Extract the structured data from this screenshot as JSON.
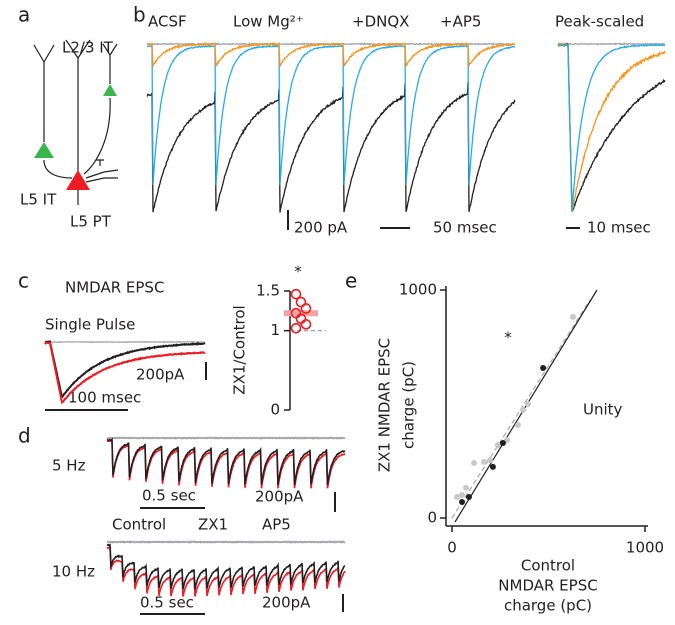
{
  "panel_labels": [
    "a",
    "b",
    "c",
    "d",
    "e"
  ],
  "panel_a": {
    "labels": [
      "L2/3 IT",
      "L5 IT",
      "L5 PT"
    ]
  },
  "panel_b": {
    "legend": [
      {
        "name": "ACSF",
        "color": "#29abe2"
      },
      {
        "name": "Low Mg²⁺",
        "color": "#231f20"
      },
      {
        "name": "+DNQX",
        "color": "#f7941d"
      },
      {
        "name": "+AP5",
        "color": "#a7a9ac"
      }
    ],
    "inset_title": "Peak-scaled",
    "scale_bars": [
      "200 pA",
      "50 msec",
      "10 msec"
    ]
  },
  "panel_c": {
    "title": "NMDAR EPSC",
    "subtitle": "Single Pulse",
    "scale_bars": [
      "200pA",
      "100 msec"
    ],
    "chart_data": {
      "type": "dot",
      "ylabel": "ZX1/Control",
      "ylim": [
        0,
        1.5
      ],
      "yticks": [
        0,
        1,
        1.5
      ],
      "values": [
        1.46,
        1.36,
        1.28,
        1.22,
        1.15,
        1.08,
        1.03
      ],
      "color": "#ed1c24",
      "mean": 1.22,
      "reference": 1,
      "annotation": "*"
    }
  },
  "panel_d": {
    "rows": [
      {
        "label": "5 Hz",
        "time_bar": "0.5 sec",
        "current_bar": "200pA"
      },
      {
        "label": "10 Hz",
        "time_bar": "0.5 sec",
        "current_bar": "200pA"
      }
    ],
    "legend": [
      {
        "name": "Control",
        "color": "#231f20"
      },
      {
        "name": "ZX1",
        "color": "#ed1c24"
      },
      {
        "name": "AP5",
        "color": "#a7a9ac"
      }
    ]
  },
  "panel_e": {
    "chart_data": {
      "type": "scatter",
      "xlabel": [
        "Control",
        "NMDAR EPSC",
        "charge (pC)"
      ],
      "ylabel": [
        "ZX1 NMDAR EPSC",
        "charge (pC)"
      ],
      "xlim": [
        0,
        1000
      ],
      "ylim": [
        0,
        1000
      ],
      "xticks": [
        0,
        1000
      ],
      "yticks": [
        0,
        1000
      ],
      "annotation": "*",
      "reference_label": "Unity",
      "series": [
        {
          "color": "#231f20",
          "x": [
            52,
            88,
            212,
            264,
            472
          ],
          "y": [
            70,
            92,
            224,
            329,
            658
          ]
        },
        {
          "color": "#c7c8ca",
          "x": [
            26,
            52,
            73,
            114,
            166,
            197,
            238,
            285,
            342,
            368,
            394,
            627
          ],
          "y": [
            92,
            101,
            132,
            241,
            246,
            254,
            320,
            342,
            408,
            474,
            500,
            882
          ]
        }
      ]
    }
  }
}
